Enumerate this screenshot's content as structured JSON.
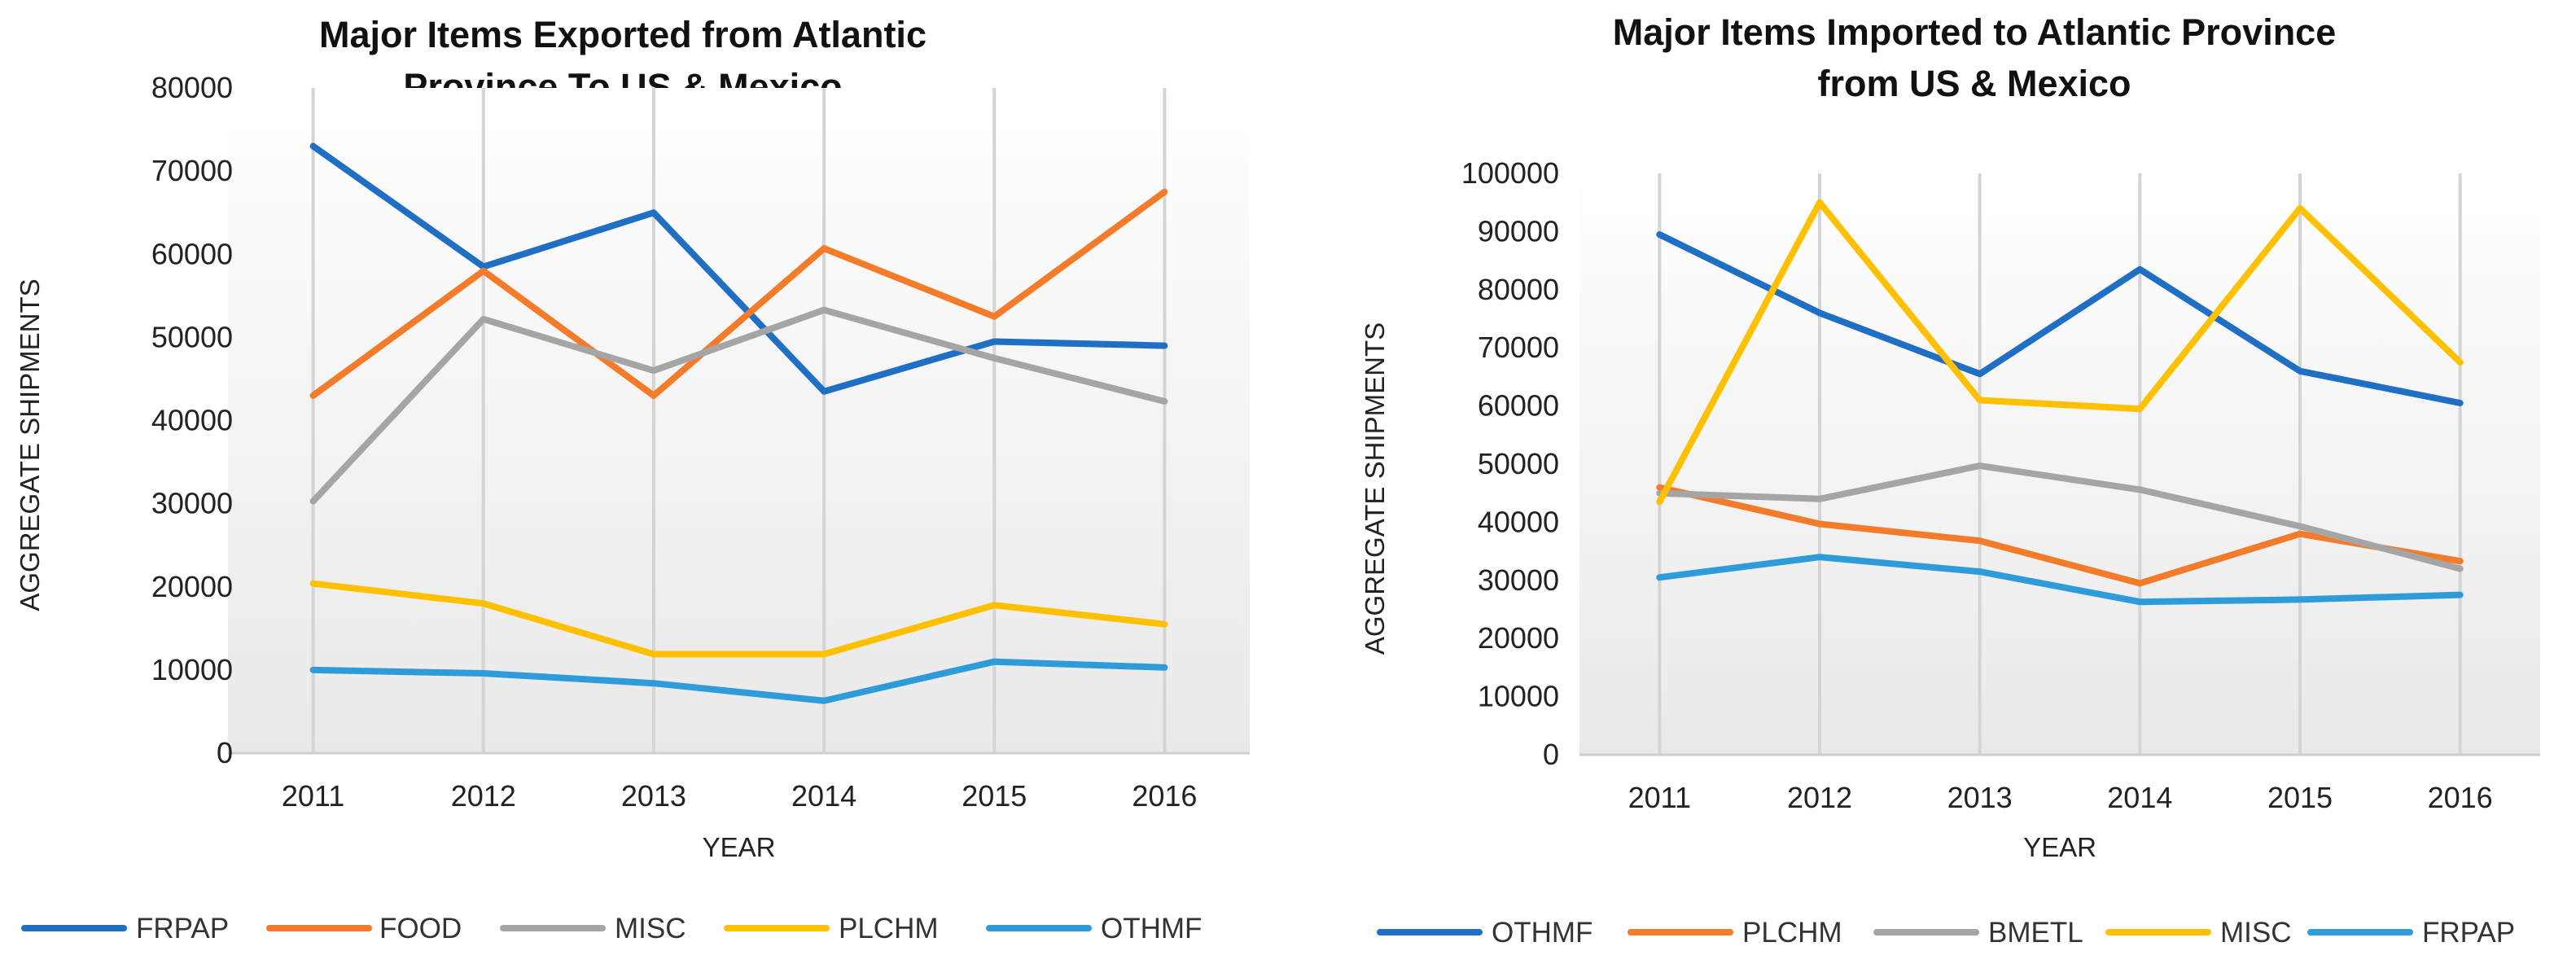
{
  "chart_data": [
    {
      "type": "line",
      "title": [
        "Major Items Exported from Atlantic",
        "Province To US & Mexico"
      ],
      "xlabel": "YEAR",
      "ylabel": "AGGREGATE SHIPMENTS",
      "categories": [
        "2011",
        "2012",
        "2013",
        "2014",
        "2015",
        "2016"
      ],
      "ylim": [
        0,
        80000
      ],
      "yticks": [
        0,
        10000,
        20000,
        30000,
        40000,
        50000,
        60000,
        70000,
        80000
      ],
      "ytick_labels": [
        "0",
        "10000",
        "20000",
        "30000",
        "40000",
        "50000",
        "60000",
        "70000",
        "80000"
      ],
      "legend_position": "bottom",
      "series": [
        {
          "name": "FRPAP",
          "color": "#1F6FC5",
          "values": [
            73000,
            58500,
            65000,
            43500,
            49500,
            49000
          ]
        },
        {
          "name": "FOOD",
          "color": "#F47B2A",
          "values": [
            43000,
            58000,
            43000,
            60700,
            52500,
            67500
          ]
        },
        {
          "name": "MISC",
          "color": "#A5A5A5",
          "values": [
            30300,
            52200,
            46000,
            53300,
            47500,
            42300
          ]
        },
        {
          "name": "PLCHM",
          "color": "#FFC000",
          "values": [
            20400,
            18000,
            11900,
            11900,
            17800,
            15500
          ]
        },
        {
          "name": "OTHMF",
          "color": "#2E9CDB",
          "values": [
            10000,
            9600,
            8400,
            6300,
            11000,
            10300
          ]
        }
      ]
    },
    {
      "type": "line",
      "title": [
        "Major Items Imported to Atlantic Province",
        "from US & Mexico"
      ],
      "xlabel": "YEAR",
      "ylabel": "AGGREGATE SHIPMENTS",
      "categories": [
        "2011",
        "2012",
        "2013",
        "2014",
        "2015",
        "2016"
      ],
      "ylim": [
        0,
        100000
      ],
      "yticks": [
        0,
        10000,
        20000,
        30000,
        40000,
        50000,
        60000,
        70000,
        80000,
        90000,
        100000
      ],
      "ytick_labels": [
        "0",
        "10000",
        "20000",
        "30000",
        "40000",
        "50000",
        "60000",
        "70000",
        "80000",
        "90000",
        "100000"
      ],
      "legend_position": "bottom",
      "series": [
        {
          "name": "OTHMF",
          "color": "#1F6FC5",
          "values": [
            89500,
            76000,
            65500,
            83500,
            66000,
            60500
          ]
        },
        {
          "name": "PLCHM",
          "color": "#F47B2A",
          "values": [
            46000,
            39700,
            36800,
            29500,
            38000,
            33300
          ]
        },
        {
          "name": "BMETL",
          "color": "#A5A5A5",
          "values": [
            45000,
            44000,
            49700,
            45600,
            39300,
            32000
          ]
        },
        {
          "name": "MISC",
          "color": "#FFC000",
          "values": [
            43500,
            95000,
            61000,
            59500,
            94000,
            67500
          ]
        },
        {
          "name": "FRPAP",
          "color": "#2E9CDB",
          "values": [
            30500,
            34000,
            31500,
            26300,
            26700,
            27500
          ]
        }
      ]
    }
  ]
}
